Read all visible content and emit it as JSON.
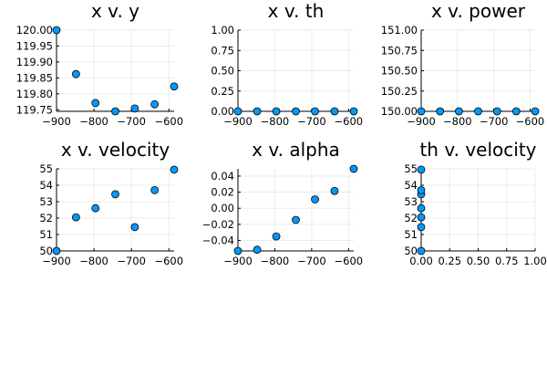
{
  "chart_data": [
    {
      "type": "scatter",
      "title": "x v. y",
      "xlabel": "",
      "ylabel": "",
      "xlim": [
        -900,
        -586
      ],
      "ylim": [
        119.745,
        120.0
      ],
      "xticks": [
        -900,
        -800,
        -700,
        -600
      ],
      "xtick_labels": [
        "−900",
        "−800",
        "−700",
        "−600"
      ],
      "yticks": [
        119.75,
        119.8,
        119.85,
        119.9,
        119.95,
        120.0
      ],
      "ytick_labels": [
        "119.75",
        "119.80",
        "119.85",
        "119.90",
        "119.95",
        "120.00"
      ],
      "x": [
        -900,
        -848,
        -796,
        -743,
        -691,
        -638,
        -586
      ],
      "y": [
        120.0,
        119.862,
        119.771,
        119.745,
        119.754,
        119.767,
        119.823
      ],
      "grid": true,
      "legend": "none",
      "marker_color": "#009af9"
    },
    {
      "type": "scatter",
      "title": "x v. th",
      "xlabel": "",
      "ylabel": "",
      "xlim": [
        -900,
        -586
      ],
      "ylim": [
        0,
        1.0
      ],
      "xticks": [
        -900,
        -800,
        -700,
        -600
      ],
      "xtick_labels": [
        "−900",
        "−800",
        "−700",
        "−600"
      ],
      "yticks": [
        0,
        0.25,
        0.5,
        0.75,
        1.0
      ],
      "ytick_labels": [
        "0.00",
        "0.25",
        "0.50",
        "0.75",
        "1.00"
      ],
      "x": [
        -900,
        -848,
        -796,
        -743,
        -691,
        -638,
        -586
      ],
      "y": [
        0,
        0,
        0,
        0,
        0,
        0,
        0
      ],
      "grid": true,
      "legend": "none",
      "marker_color": "#009af9"
    },
    {
      "type": "scatter",
      "title": "x v. power",
      "xlabel": "",
      "ylabel": "",
      "xlim": [
        -900,
        -586
      ],
      "ylim": [
        150.0,
        151.0
      ],
      "xticks": [
        -900,
        -800,
        -700,
        -600
      ],
      "xtick_labels": [
        "−900",
        "−800",
        "−700",
        "−600"
      ],
      "yticks": [
        150.0,
        150.25,
        150.5,
        150.75,
        151.0
      ],
      "ytick_labels": [
        "150.00",
        "150.25",
        "150.50",
        "150.75",
        "151.00"
      ],
      "x": [
        -900,
        -848,
        -796,
        -743,
        -691,
        -638,
        -586
      ],
      "y": [
        150,
        150,
        150,
        150,
        150,
        150,
        150
      ],
      "grid": true,
      "legend": "none",
      "marker_color": "#009af9"
    },
    {
      "type": "scatter",
      "title": "x v. velocity",
      "xlabel": "",
      "ylabel": "",
      "xlim": [
        -900,
        -586
      ],
      "ylim": [
        50,
        55
      ],
      "xticks": [
        -900,
        -800,
        -700,
        -600
      ],
      "xtick_labels": [
        "−900",
        "−800",
        "−700",
        "−600"
      ],
      "yticks": [
        50,
        51,
        52,
        53,
        54,
        55
      ],
      "ytick_labels": [
        "50",
        "51",
        "52",
        "53",
        "54",
        "55"
      ],
      "x": [
        -900,
        -848,
        -796,
        -743,
        -691,
        -638,
        -586
      ],
      "y": [
        50.0,
        52.05,
        52.6,
        53.45,
        51.45,
        53.7,
        54.95
      ],
      "grid": true,
      "legend": "none",
      "marker_color": "#009af9"
    },
    {
      "type": "scatter",
      "title": "x v. alpha",
      "xlabel": "",
      "ylabel": "",
      "xlim": [
        -900,
        -586
      ],
      "ylim": [
        -0.053,
        0.049
      ],
      "xticks": [
        -900,
        -800,
        -700,
        -600
      ],
      "xtick_labels": [
        "−900",
        "−800",
        "−700",
        "−600"
      ],
      "yticks": [
        -0.04,
        -0.02,
        0.0,
        0.02,
        0.04
      ],
      "ytick_labels": [
        "−0.04",
        "−0.02",
        "0.00",
        "0.02",
        "0.04"
      ],
      "x": [
        -900,
        -848,
        -796,
        -743,
        -691,
        -638,
        -586
      ],
      "y": [
        -0.053,
        -0.0515,
        -0.035,
        -0.0145,
        0.011,
        0.0215,
        0.049
      ],
      "grid": true,
      "legend": "none",
      "marker_color": "#009af9"
    },
    {
      "type": "scatter",
      "title": "th v. velocity",
      "xlabel": "",
      "ylabel": "",
      "xlim": [
        0,
        1.0
      ],
      "ylim": [
        50,
        55
      ],
      "xticks": [
        0,
        0.25,
        0.5,
        0.75,
        1.0
      ],
      "xtick_labels": [
        "0.00",
        "0.25",
        "0.50",
        "0.75",
        "1.00"
      ],
      "yticks": [
        50,
        51,
        52,
        53,
        54,
        55
      ],
      "ytick_labels": [
        "50",
        "51",
        "52",
        "53",
        "54",
        "55"
      ],
      "x": [
        0,
        0,
        0,
        0,
        0,
        0,
        0
      ],
      "y": [
        50.0,
        52.05,
        52.6,
        53.45,
        51.45,
        53.7,
        54.95
      ],
      "grid": true,
      "legend": "none",
      "marker_color": "#009af9"
    }
  ]
}
